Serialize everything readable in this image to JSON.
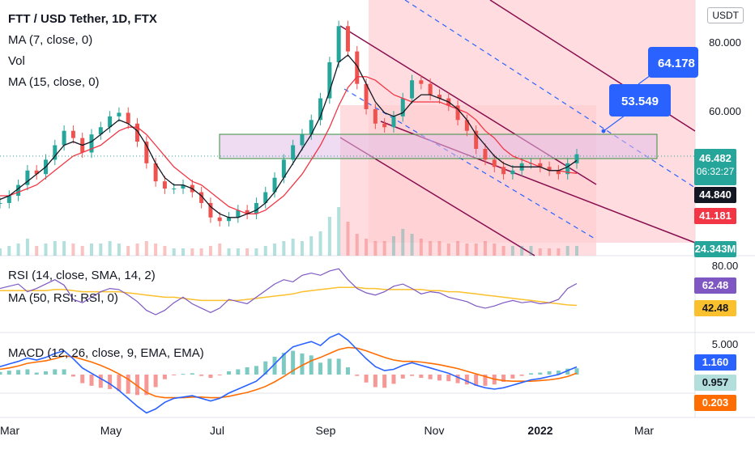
{
  "header": {
    "symbol": "FTT / USD Tether, 1D, FTX",
    "ma7": "MA (7, close, 0)",
    "vol": "Vol",
    "ma15": "MA (15, close, 0)",
    "rsi": "RSI (14, close, SMA, 14, 2)",
    "rsi_ma": "MA (50, RSI: RSI, 0)",
    "macd": "MACD (12, 26, close, 9, EMA, EMA)"
  },
  "currency": "USDT",
  "annotations": {
    "callout_high": "64.178",
    "callout_mid": "53.549"
  },
  "price_tags": [
    {
      "value": "46.482",
      "sub": "06:32:27",
      "bg": "#26a69a",
      "fg": "#ffffff"
    },
    {
      "value": "44.840",
      "bg": "#131722",
      "fg": "#ffffff"
    },
    {
      "value": "41.181",
      "bg": "#f23645",
      "fg": "#ffffff"
    },
    {
      "value": "24.343M",
      "bg": "#26a69a",
      "fg": "#ffffff"
    }
  ],
  "rsi_tags": [
    {
      "value": "62.48",
      "bg": "#7e57c2",
      "fg": "#ffffff"
    },
    {
      "value": "42.48",
      "bg": "#fbc02d",
      "fg": "#131722"
    }
  ],
  "macd_tags": [
    {
      "value": "1.160",
      "bg": "#2962ff",
      "fg": "#ffffff"
    },
    {
      "value": "0.957",
      "bg": "#b2dfdb",
      "fg": "#131722"
    },
    {
      "value": "0.203",
      "bg": "#ff6d00",
      "fg": "#ffffff"
    }
  ],
  "chart_data": {
    "type": "line",
    "price_axis": {
      "ticks": [
        "80.000",
        "60.000"
      ],
      "range": [
        22,
        87
      ]
    },
    "rsi_axis": {
      "ticks": [
        "80.00"
      ],
      "range": [
        20,
        85
      ]
    },
    "macd_axis": {
      "ticks": [
        "5.000"
      ],
      "range": [
        -6,
        6
      ]
    },
    "time_axis": [
      "Mar",
      "May",
      "Jul",
      "Sep",
      "Nov",
      "2022",
      "Mar"
    ],
    "price_series": [
      {
        "name": "close",
        "color": "#131722",
        "x": [
          0,
          0.6,
          1.2,
          1.8,
          2.4,
          3.0,
          3.6,
          4.2,
          4.8,
          5.4,
          6.0,
          6.6,
          7.2,
          7.8,
          8.4,
          9.0,
          9.6,
          10.2,
          10.8,
          11.4,
          12.0,
          12.6
        ],
        "y": [
          34,
          41,
          46,
          53,
          48,
          54,
          59,
          57,
          40,
          37,
          37,
          30,
          28,
          33,
          36,
          47,
          64,
          73,
          59,
          54,
          62,
          60
        ]
      },
      {
        "name": "ma7",
        "color": "#131722",
        "x": [],
        "y": []
      }
    ],
    "close": [
      33,
      35,
      38,
      42,
      41,
      45,
      49,
      53,
      51,
      47,
      52,
      54,
      57,
      58,
      55,
      50,
      44,
      39,
      37,
      37,
      38,
      36,
      33,
      29,
      28,
      29,
      31,
      30,
      33,
      36,
      40,
      45,
      49,
      52,
      56,
      62,
      72,
      82,
      75,
      66,
      59,
      55,
      54,
      57,
      62,
      67,
      66,
      63,
      62,
      60,
      56,
      53,
      48,
      45,
      43,
      41,
      42,
      44,
      44,
      43,
      42,
      41,
      44,
      46.5
    ],
    "ma7": [
      34,
      35,
      37,
      39,
      41,
      43,
      46,
      49,
      50,
      49,
      50,
      52,
      54,
      56,
      55,
      53,
      49,
      44,
      40,
      38,
      38,
      37,
      35,
      32,
      30,
      29,
      29,
      30,
      31,
      33,
      36,
      40,
      44,
      48,
      52,
      57,
      64,
      72,
      74,
      71,
      66,
      61,
      58,
      57,
      58,
      61,
      63,
      63,
      62,
      61,
      59,
      56,
      52,
      49,
      46,
      44,
      43,
      43,
      43,
      43,
      42,
      42,
      43,
      44.8
    ],
    "ma15": [
      35,
      35,
      36,
      37,
      38,
      40,
      42,
      44,
      46,
      47,
      48,
      49,
      51,
      53,
      54,
      54,
      52,
      49,
      46,
      43,
      41,
      39,
      38,
      36,
      34,
      32,
      31,
      30,
      30,
      31,
      33,
      35,
      38,
      41,
      45,
      49,
      54,
      60,
      65,
      68,
      68,
      67,
      65,
      63,
      62,
      61,
      61,
      61,
      61,
      60,
      59,
      58,
      56,
      53,
      51,
      48,
      46,
      45,
      44,
      43,
      42,
      42,
      41.5,
      41.2
    ],
    "volume": [
      0.3,
      0.4,
      0.5,
      0.7,
      0.4,
      0.5,
      0.6,
      0.6,
      0.5,
      0.4,
      0.5,
      0.5,
      0.6,
      0.5,
      0.4,
      0.5,
      0.6,
      0.5,
      0.4,
      0.3,
      0.3,
      0.3,
      0.3,
      0.4,
      0.5,
      0.3,
      0.3,
      0.3,
      0.3,
      0.4,
      0.5,
      0.6,
      0.7,
      0.6,
      0.8,
      1.0,
      1.6,
      2.0,
      1.4,
      0.9,
      0.7,
      0.6,
      0.6,
      0.8,
      1.1,
      0.9,
      0.7,
      0.6,
      0.6,
      0.5,
      0.6,
      0.5,
      0.5,
      0.6,
      0.5,
      0.4,
      0.4,
      0.4,
      0.4,
      0.3,
      0.3,
      0.3,
      0.4,
      0.4
    ],
    "rsi": [
      58,
      60,
      62,
      55,
      58,
      62,
      66,
      61,
      48,
      45,
      50,
      55,
      58,
      57,
      52,
      46,
      38,
      34,
      38,
      45,
      50,
      44,
      40,
      36,
      40,
      48,
      46,
      44,
      50,
      56,
      62,
      66,
      64,
      70,
      72,
      70,
      74,
      76,
      66,
      58,
      54,
      52,
      55,
      60,
      62,
      58,
      53,
      55,
      54,
      50,
      48,
      46,
      42,
      40,
      42,
      45,
      47,
      45,
      46,
      44,
      45,
      48,
      58,
      62.5
    ],
    "rsi_ma": [
      56,
      56,
      56,
      56,
      56,
      56,
      57,
      57,
      56,
      55,
      55,
      55,
      55,
      55,
      54,
      53,
      52,
      51,
      50,
      50,
      49,
      48,
      47,
      47,
      47,
      47,
      47,
      48,
      49,
      50,
      51,
      52,
      53,
      55,
      56,
      57,
      58,
      59,
      59,
      59,
      58,
      58,
      57,
      57,
      57,
      57,
      57,
      56,
      56,
      55,
      55,
      54,
      53,
      52,
      51,
      50,
      49,
      48,
      47,
      46,
      45,
      44,
      43,
      42.5
    ],
    "macd": [
      1.2,
      1.6,
      2.0,
      2.5,
      2.2,
      2.6,
      3.2,
      3.6,
      2.4,
      1.0,
      0.2,
      -0.6,
      -1.4,
      -2.4,
      -3.6,
      -4.8,
      -5.8,
      -5.2,
      -4.2,
      -3.6,
      -3.4,
      -3.2,
      -3.6,
      -4.0,
      -3.6,
      -2.8,
      -2.2,
      -1.6,
      -1.0,
      0.2,
      1.6,
      3.0,
      4.2,
      4.6,
      5.0,
      4.4,
      5.6,
      6.2,
      5.2,
      3.8,
      2.4,
      1.2,
      0.6,
      0.8,
      1.4,
      1.8,
      1.4,
      1.0,
      0.6,
      0.2,
      -0.4,
      -1.0,
      -1.6,
      -2.0,
      -2.2,
      -2.0,
      -1.6,
      -1.2,
      -0.8,
      -0.6,
      -0.3,
      0.0,
      0.6,
      1.16
    ],
    "signal": [
      0.8,
      1.0,
      1.3,
      1.7,
      1.9,
      2.1,
      2.4,
      2.8,
      2.7,
      2.3,
      1.9,
      1.4,
      0.8,
      0.1,
      -0.7,
      -1.7,
      -2.7,
      -3.3,
      -3.5,
      -3.5,
      -3.5,
      -3.4,
      -3.4,
      -3.5,
      -3.5,
      -3.3,
      -3.0,
      -2.7,
      -2.3,
      -1.8,
      -1.1,
      -0.3,
      0.6,
      1.4,
      2.1,
      2.6,
      3.2,
      3.8,
      4.1,
      4.0,
      3.6,
      3.1,
      2.6,
      2.2,
      2.0,
      2.0,
      1.9,
      1.7,
      1.5,
      1.2,
      0.9,
      0.5,
      0.1,
      -0.3,
      -0.7,
      -0.9,
      -1.0,
      -1.0,
      -1.0,
      -0.9,
      -0.8,
      -0.6,
      -0.3,
      0.203
    ]
  }
}
